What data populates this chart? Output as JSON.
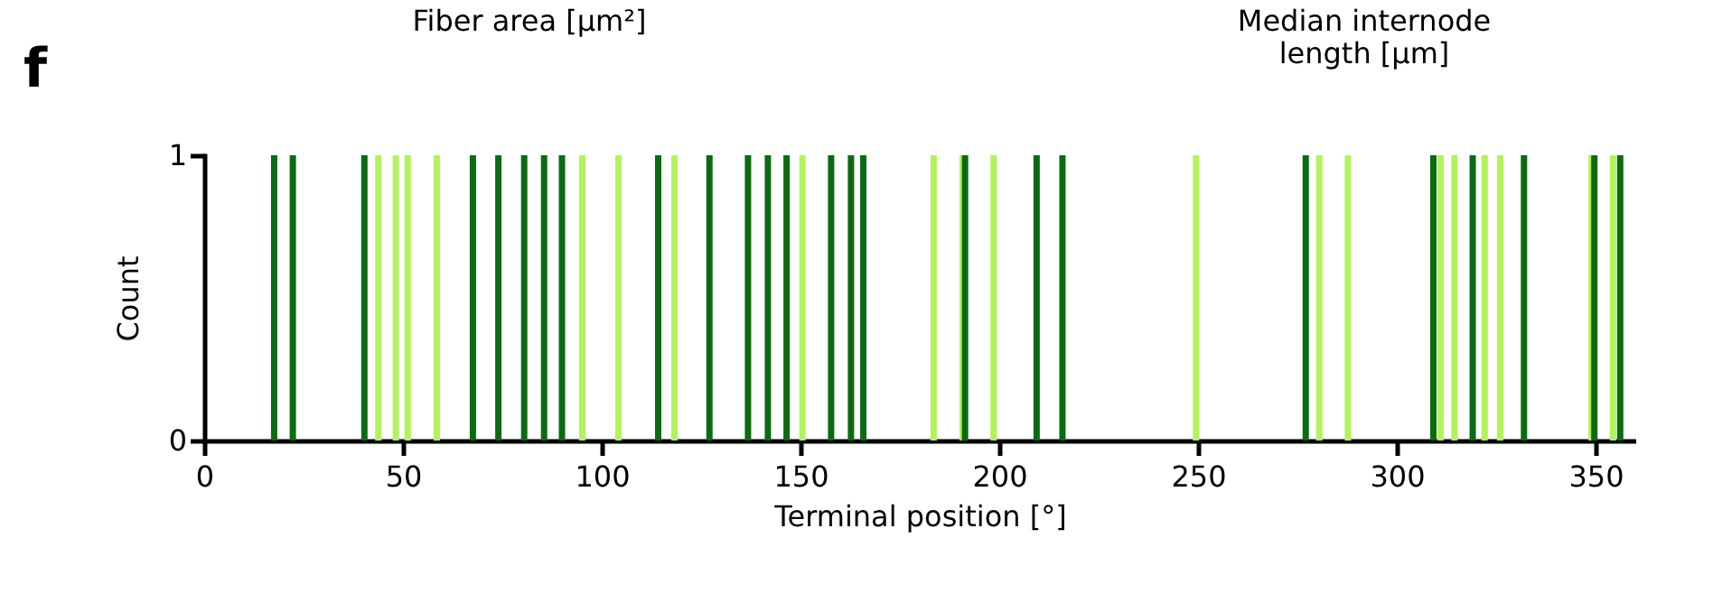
{
  "chart_data": {
    "type": "bar",
    "xlabel": "Terminal position [°]",
    "ylabel": "Count",
    "annotations": [
      "f",
      "Fiber area [µm²]",
      "Median internode\nlength [µm]"
    ],
    "x": [
      17.6,
      22.3,
      40.3,
      43.8,
      48.2,
      51.2,
      58.5,
      67.6,
      74,
      80.5,
      85.5,
      90,
      95.1,
      104.2,
      114.2,
      118.3,
      127.1,
      136.8,
      141.8,
      146.5,
      150.5,
      157.7,
      162.7,
      165.8,
      183.5,
      190.8,
      191.4,
      198.6,
      209.4,
      215.9,
      249.5,
      277.1,
      280.5,
      287.7,
      309.2,
      311,
      314.5,
      319.1,
      322.1,
      326,
      332,
      349,
      349.7,
      354.4,
      356.2
    ],
    "values": [
      1,
      1,
      1,
      1,
      1,
      1,
      1,
      1,
      1,
      1,
      1,
      1,
      1,
      1,
      1,
      1,
      1,
      1,
      1,
      1,
      1,
      1,
      1,
      1,
      1,
      1,
      1,
      1,
      1,
      1,
      1,
      1,
      1,
      1,
      1,
      1,
      1,
      1,
      1,
      1,
      1,
      1,
      1,
      1,
      1
    ],
    "colors": [
      "#0b6b12",
      "#0b6b12",
      "#0b6b12",
      "#b2f25a",
      "#b2f25a",
      "#b2f25a",
      "#b2f25a",
      "#0b6b12",
      "#0b6b12",
      "#0b6b12",
      "#0b6b12",
      "#0b6b12",
      "#b2f25a",
      "#b2f25a",
      "#0b6b12",
      "#b2f25a",
      "#0b6b12",
      "#0b6b12",
      "#0b6b12",
      "#0b6b12",
      "#b2f25a",
      "#0b6b12",
      "#0b6b12",
      "#0b6b12",
      "#b2f25a",
      "#b2f25a",
      "#0b6b12",
      "#b2f25a",
      "#0b6b12",
      "#0b6b12",
      "#b2f25a",
      "#0b6b12",
      "#b2f25a",
      "#b2f25a",
      "#0b6b12",
      "#b2f25a",
      "#b2f25a",
      "#0b6b12",
      "#b2f25a",
      "#b2f25a",
      "#0b6b12",
      "#b2f25a",
      "#0b6b12",
      "#b2f25a",
      "#0b6b12"
    ],
    "xlim": [
      0,
      360
    ],
    "xticks": [
      0,
      50,
      100,
      150,
      200,
      250,
      300,
      350
    ],
    "ylim": [
      0,
      1
    ],
    "yticks": [
      0,
      1
    ],
    "grid": false
  }
}
